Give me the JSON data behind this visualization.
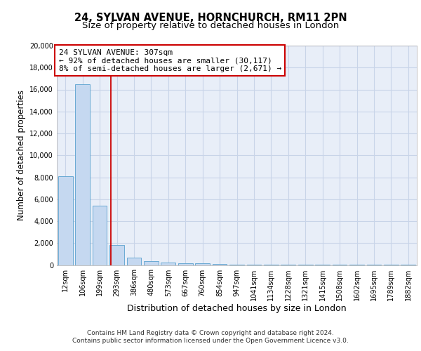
{
  "title_line1": "24, SYLVAN AVENUE, HORNCHURCH, RM11 2PN",
  "title_line2": "Size of property relative to detached houses in London",
  "xlabel": "Distribution of detached houses by size in London",
  "ylabel": "Number of detached properties",
  "bar_labels": [
    "12sqm",
    "106sqm",
    "199sqm",
    "293sqm",
    "386sqm",
    "480sqm",
    "573sqm",
    "667sqm",
    "760sqm",
    "854sqm",
    "947sqm",
    "1041sqm",
    "1134sqm",
    "1228sqm",
    "1321sqm",
    "1415sqm",
    "1508sqm",
    "1602sqm",
    "1695sqm",
    "1789sqm",
    "1882sqm"
  ],
  "bar_values": [
    8100,
    16500,
    5400,
    1800,
    700,
    350,
    200,
    175,
    150,
    80,
    30,
    20,
    15,
    10,
    8,
    5,
    4,
    3,
    2,
    2,
    1
  ],
  "bar_color": "#c5d8f0",
  "bar_edgecolor": "#6aaad4",
  "bar_linewidth": 0.7,
  "property_line_x": 2.65,
  "property_line_color": "#cc0000",
  "annotation_text": "24 SYLVAN AVENUE: 307sqm\n← 92% of detached houses are smaller (30,117)\n8% of semi-detached houses are larger (2,671) →",
  "annotation_box_edgecolor": "#cc0000",
  "annotation_box_facecolor": "white",
  "ylim": [
    0,
    20000
  ],
  "yticks": [
    0,
    2000,
    4000,
    6000,
    8000,
    10000,
    12000,
    14000,
    16000,
    18000,
    20000
  ],
  "grid_color": "#c8d4e8",
  "background_color": "#e8eef8",
  "footer_line1": "Contains HM Land Registry data © Crown copyright and database right 2024.",
  "footer_line2": "Contains public sector information licensed under the Open Government Licence v3.0.",
  "title_fontsize": 10.5,
  "subtitle_fontsize": 9.5,
  "ylabel_fontsize": 8.5,
  "xlabel_fontsize": 9,
  "tick_fontsize": 7,
  "annotation_fontsize": 8,
  "footer_fontsize": 6.5
}
